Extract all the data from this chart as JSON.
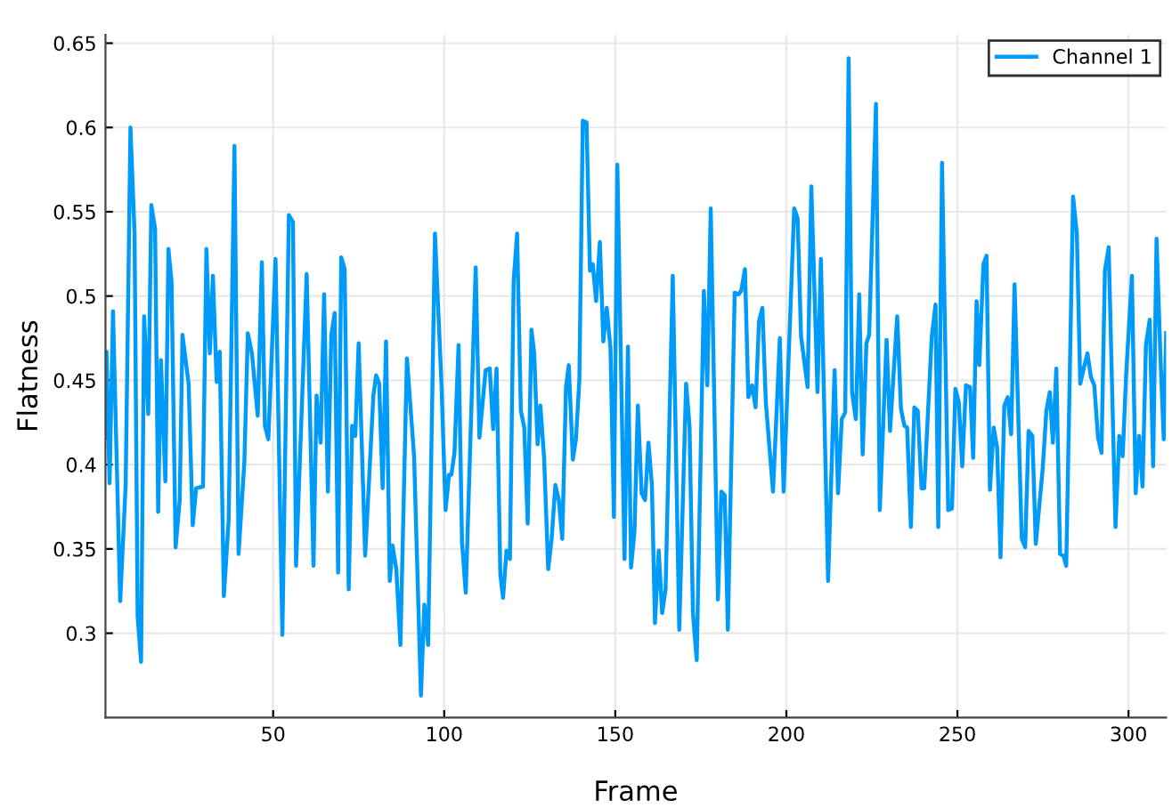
{
  "chart_data": {
    "type": "line",
    "xlabel": "Frame",
    "ylabel": "Flatness",
    "series": [
      {
        "name": "Channel 1",
        "color": "#009af9",
        "x": [
          1.1,
          1.3,
          2.2,
          3.2,
          5.3,
          6.9,
          8.3,
          9.5,
          10.4,
          11.4,
          12.3,
          13.5,
          14.4,
          15.5,
          16.4,
          17.2,
          18.5,
          19.4,
          20.3,
          21.5,
          22.7,
          23.5,
          25.3,
          26.5,
          27.5,
          29.5,
          30.5,
          31.5,
          32.4,
          33.5,
          34.4,
          35.6,
          37,
          38.7,
          39.9,
          41.6,
          42.6,
          43.8,
          45.5,
          46.7,
          47.6,
          48.6,
          50.7,
          52.7,
          54.6,
          55.8,
          56.7,
          59.8,
          61.8,
          62.7,
          63.9,
          64.9,
          66,
          67,
          68,
          69,
          69.9,
          70.9,
          72.1,
          73.1,
          74,
          75,
          76.9,
          79.3,
          80.1,
          81,
          82,
          83,
          84.1,
          84.9,
          86,
          87.2,
          89.1,
          91.2,
          93.2,
          94.2,
          95.3,
          97.3,
          99.2,
          100.4,
          101.4,
          102.1,
          103,
          104.2,
          105.2,
          106.3,
          109.2,
          110.3,
          112.1,
          113.3,
          114.3,
          115.3,
          116.4,
          117.2,
          118.2,
          119.2,
          120.3,
          121.3,
          122.4,
          123.4,
          124.4,
          125.5,
          126.3,
          127.3,
          128.1,
          129.2,
          130.4,
          131.4,
          132.5,
          133.5,
          134.5,
          135.6,
          136.4,
          137.6,
          138.5,
          139.5,
          140.5,
          141.6,
          142.6,
          143.4,
          144.4,
          145.5,
          146.5,
          147.5,
          148.6,
          149.6,
          150.6,
          152.7,
          153.7,
          154.6,
          155.6,
          156.6,
          157.7,
          158.7,
          159.7,
          160.7,
          161.6,
          162.7,
          163.7,
          164.7,
          166.8,
          168.7,
          170.7,
          171.7,
          172.7,
          173.8,
          175.9,
          176.9,
          177.9,
          180,
          181,
          182,
          182.9,
          184.9,
          186,
          186.8,
          187.9,
          188.9,
          190,
          191,
          192,
          193,
          194,
          196.1,
          198.1,
          199.2,
          202.3,
          203.3,
          204.3,
          206.2,
          207.3,
          209.1,
          210.1,
          212.2,
          214.1,
          215.1,
          216.2,
          217.2,
          218.2,
          219.2,
          220.3,
          221.3,
          222.3,
          223.4,
          224.2,
          226.2,
          227.3,
          229.3,
          230.3,
          232.4,
          233.5,
          234.5,
          235.3,
          236.4,
          237.4,
          238.4,
          239.5,
          240.3,
          242.5,
          243.6,
          244.4,
          245.5,
          247.3,
          248.4,
          249.4,
          250.4,
          251.4,
          252.5,
          253.7,
          254.6,
          255.6,
          256.4,
          257.6,
          258.5,
          259.5,
          260.6,
          261.6,
          262.6,
          263.7,
          264.7,
          265.7,
          266.7,
          268.8,
          269.8,
          270.8,
          271.9,
          272.9,
          274.9,
          276,
          277,
          277.9,
          278.9,
          280,
          281,
          281.8,
          283.8,
          284.9,
          285.9,
          286.9,
          288,
          289,
          290,
          291.1,
          292.1,
          293.1,
          294.2,
          296.2,
          297.3,
          298.3,
          299.3,
          301,
          302.1,
          303.1,
          304.1,
          305.1,
          306.2,
          307.2,
          308.2,
          309.3,
          310.3,
          311
        ],
        "values": [
          0.416,
          0.467,
          0.389,
          0.491,
          0.319,
          0.388,
          0.6,
          0.537,
          0.31,
          0.283,
          0.488,
          0.43,
          0.554,
          0.54,
          0.372,
          0.462,
          0.39,
          0.528,
          0.509,
          0.351,
          0.379,
          0.477,
          0.448,
          0.364,
          0.386,
          0.387,
          0.528,
          0.466,
          0.512,
          0.449,
          0.467,
          0.322,
          0.367,
          0.589,
          0.347,
          0.402,
          0.478,
          0.466,
          0.429,
          0.52,
          0.423,
          0.415,
          0.522,
          0.299,
          0.548,
          0.544,
          0.34,
          0.513,
          0.34,
          0.441,
          0.413,
          0.501,
          0.384,
          0.477,
          0.49,
          0.336,
          0.523,
          0.516,
          0.326,
          0.423,
          0.417,
          0.472,
          0.346,
          0.441,
          0.453,
          0.448,
          0.386,
          0.473,
          0.331,
          0.352,
          0.338,
          0.293,
          0.463,
          0.405,
          0.263,
          0.317,
          0.293,
          0.537,
          0.448,
          0.373,
          0.394,
          0.394,
          0.407,
          0.471,
          0.354,
          0.324,
          0.517,
          0.416,
          0.456,
          0.457,
          0.421,
          0.457,
          0.335,
          0.321,
          0.349,
          0.344,
          0.509,
          0.537,
          0.432,
          0.422,
          0.365,
          0.48,
          0.466,
          0.412,
          0.435,
          0.404,
          0.338,
          0.356,
          0.388,
          0.379,
          0.356,
          0.446,
          0.459,
          0.403,
          0.415,
          0.45,
          0.604,
          0.603,
          0.515,
          0.519,
          0.497,
          0.532,
          0.473,
          0.493,
          0.469,
          0.369,
          0.578,
          0.344,
          0.47,
          0.339,
          0.36,
          0.435,
          0.383,
          0.379,
          0.413,
          0.388,
          0.306,
          0.349,
          0.312,
          0.326,
          0.512,
          0.302,
          0.448,
          0.423,
          0.312,
          0.284,
          0.503,
          0.447,
          0.552,
          0.32,
          0.384,
          0.382,
          0.302,
          0.502,
          0.501,
          0.503,
          0.516,
          0.44,
          0.447,
          0.434,
          0.485,
          0.493,
          0.437,
          0.384,
          0.475,
          0.384,
          0.552,
          0.546,
          0.476,
          0.446,
          0.565,
          0.443,
          0.522,
          0.331,
          0.456,
          0.383,
          0.427,
          0.431,
          0.641,
          0.443,
          0.427,
          0.501,
          0.406,
          0.472,
          0.477,
          0.614,
          0.373,
          0.474,
          0.42,
          0.488,
          0.433,
          0.423,
          0.422,
          0.363,
          0.434,
          0.432,
          0.386,
          0.386,
          0.476,
          0.495,
          0.363,
          0.579,
          0.373,
          0.374,
          0.445,
          0.437,
          0.399,
          0.447,
          0.446,
          0.404,
          0.497,
          0.459,
          0.519,
          0.524,
          0.385,
          0.422,
          0.41,
          0.345,
          0.435,
          0.44,
          0.418,
          0.507,
          0.356,
          0.351,
          0.42,
          0.417,
          0.353,
          0.397,
          0.432,
          0.443,
          0.413,
          0.457,
          0.347,
          0.346,
          0.34,
          0.559,
          0.537,
          0.448,
          0.457,
          0.466,
          0.452,
          0.447,
          0.416,
          0.407,
          0.515,
          0.529,
          0.363,
          0.417,
          0.405,
          0.453,
          0.512,
          0.383,
          0.417,
          0.387,
          0.471,
          0.486,
          0.399,
          0.534,
          0.466,
          0.415,
          0.478
        ]
      }
    ],
    "xlim": [
      1,
      311
    ],
    "ylim": [
      0.25,
      0.655
    ],
    "xticks": [
      50,
      100,
      150,
      200,
      250,
      300
    ],
    "yticks": [
      0.3,
      0.35,
      0.4,
      0.45,
      0.5,
      0.55,
      0.6,
      0.65
    ],
    "grid": true,
    "legend": "top right",
    "marker": "none",
    "line_style": "solid"
  }
}
